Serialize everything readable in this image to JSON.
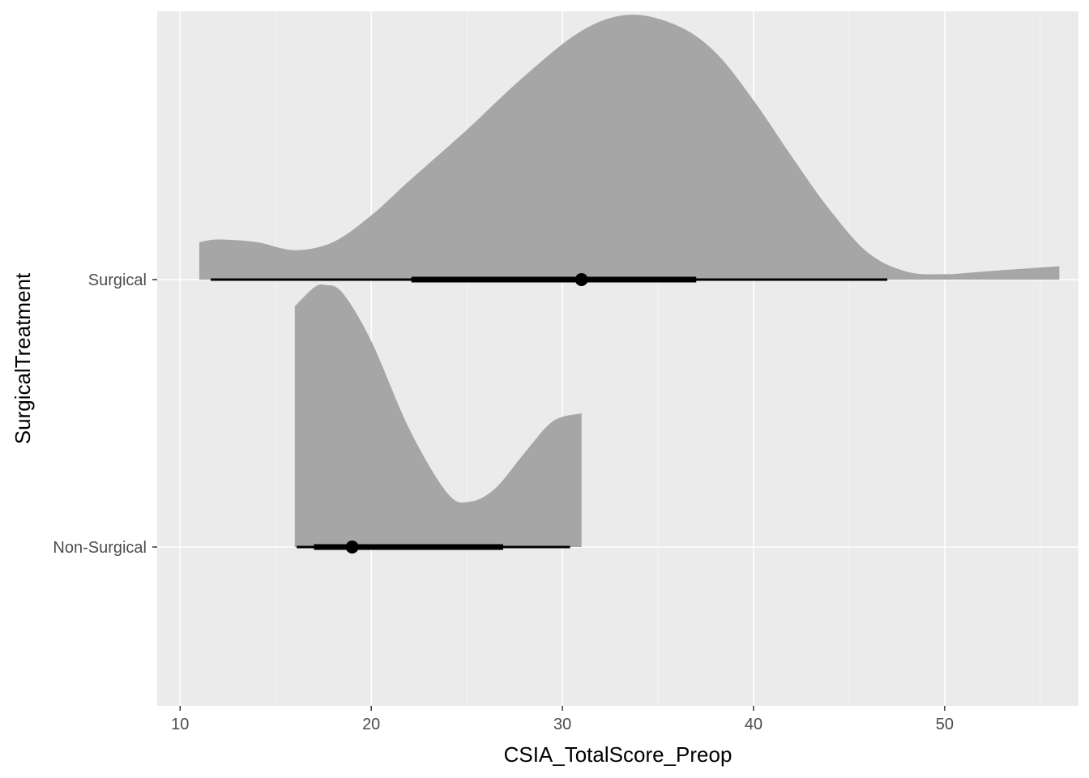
{
  "chart_data": {
    "type": "halfeye",
    "xlabel": "CSIA_TotalScore_Preop",
    "ylabel": "SurgicalTreatment",
    "xlim": [
      8.8,
      57.0
    ],
    "x_ticks": [
      10,
      20,
      30,
      40,
      50
    ],
    "x_tick_labels": [
      "10",
      "20",
      "30",
      "40",
      "50"
    ],
    "categories": [
      "Surgical",
      "Non-Surgical"
    ],
    "grid": true,
    "colors": {
      "panel": "#ebebeb",
      "grid_major": "#ffffff",
      "grid_minor": "#f5f5f5",
      "density_fill": "#a6a6a6",
      "interval": "#000000"
    },
    "groups": [
      {
        "label": "Surgical",
        "density_range": [
          11,
          56
        ],
        "density_relative": [
          [
            11,
            0.14
          ],
          [
            12,
            0.15
          ],
          [
            14,
            0.14
          ],
          [
            16,
            0.11
          ],
          [
            18,
            0.14
          ],
          [
            20,
            0.24
          ],
          [
            22,
            0.37
          ],
          [
            25,
            0.56
          ],
          [
            28,
            0.76
          ],
          [
            31,
            0.93
          ],
          [
            33.5,
            0.99
          ],
          [
            36,
            0.95
          ],
          [
            38,
            0.85
          ],
          [
            40,
            0.67
          ],
          [
            42,
            0.46
          ],
          [
            44,
            0.26
          ],
          [
            46,
            0.1
          ],
          [
            48,
            0.03
          ],
          [
            50,
            0.02
          ],
          [
            52,
            0.03
          ],
          [
            54,
            0.04
          ],
          [
            56,
            0.05
          ]
        ],
        "point": 31,
        "interval_inner": [
          22.1,
          37
        ],
        "interval_outer": [
          11.6,
          47
        ]
      },
      {
        "label": "Non-Surgical",
        "density_range": [
          16,
          31
        ],
        "density_relative": [
          [
            16,
            0.9
          ],
          [
            17,
            0.97
          ],
          [
            17.6,
            0.98
          ],
          [
            18.5,
            0.95
          ],
          [
            20,
            0.77
          ],
          [
            22,
            0.44
          ],
          [
            24,
            0.2
          ],
          [
            25.2,
            0.17
          ],
          [
            26.5,
            0.22
          ],
          [
            28,
            0.35
          ],
          [
            29.5,
            0.47
          ],
          [
            31,
            0.5
          ]
        ],
        "point": 19,
        "interval_inner": [
          17,
          26.9
        ],
        "interval_outer": [
          16.1,
          30.4
        ]
      }
    ]
  }
}
